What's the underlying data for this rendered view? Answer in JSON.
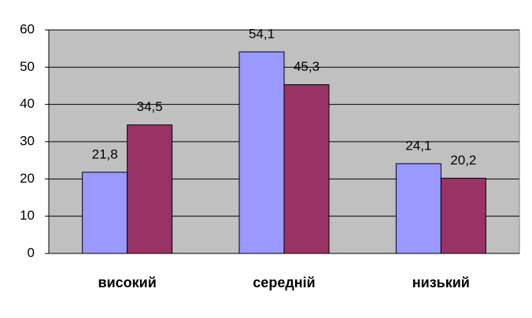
{
  "chart_data": {
    "type": "bar",
    "categories": [
      "високий",
      "середній",
      "низький"
    ],
    "series": [
      {
        "color": "#9999ff",
        "values": [
          21.8,
          54.1,
          24.1
        ],
        "value_labels": [
          "21,8",
          "54,1",
          "24,1"
        ]
      },
      {
        "color": "#993366",
        "values": [
          34.5,
          45.3,
          20.2
        ],
        "value_labels": [
          "34,5",
          "45,3",
          "20,2"
        ]
      }
    ],
    "ylim": [
      0,
      60
    ],
    "yticks": [
      0,
      10,
      20,
      30,
      40,
      50,
      60
    ],
    "grid": true,
    "plot_background": "#c0c0c0"
  }
}
